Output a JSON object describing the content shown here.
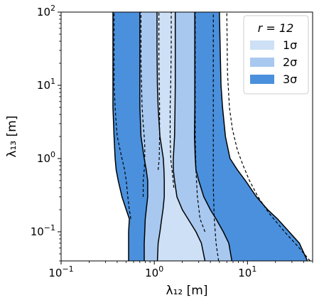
{
  "chart_data": {
    "type": "area",
    "xscale": "log",
    "yscale": "log",
    "xlim": [
      0.1,
      50
    ],
    "ylim": [
      0.04,
      100
    ],
    "xlabel": "λ₁₂ [m]",
    "ylabel": "λ₁₃ [m]",
    "x_ticks": [
      {
        "value": 0.1,
        "base": "10",
        "exp": "−1"
      },
      {
        "value": 1,
        "base": "10",
        "exp": "0"
      },
      {
        "value": 10,
        "base": "10",
        "exp": "1"
      }
    ],
    "y_ticks": [
      {
        "value": 0.1,
        "base": "10",
        "exp": "−1"
      },
      {
        "value": 1,
        "base": "10",
        "exp": "0"
      },
      {
        "value": 10,
        "base": "10",
        "exp": "1"
      },
      {
        "value": 100,
        "base": "10",
        "exp": "2"
      }
    ],
    "legend": {
      "title": "r = 12",
      "placement": "top-right",
      "entries": [
        {
          "label": "1σ",
          "color": "#cde0f5"
        },
        {
          "label": "2σ",
          "color": "#a8c8ef"
        },
        {
          "label": "3σ",
          "color": "#4a90dc"
        }
      ]
    },
    "colors": {
      "sigma1": "#cde0f5",
      "sigma2": "#a8c8ef",
      "sigma3": "#4a90dc",
      "contour": "#000000"
    },
    "contours": {
      "y": [
        0.04,
        0.07,
        0.1,
        0.15,
        0.2,
        0.3,
        0.5,
        0.7,
        1,
        2,
        5,
        10,
        30,
        100
      ],
      "sigma3_left": [
        0.53,
        0.53,
        0.53,
        0.54,
        0.5,
        0.45,
        0.41,
        0.39,
        0.38,
        0.37,
        0.36,
        0.36,
        0.36,
        0.36
      ],
      "sigma2_left": [
        0.78,
        0.78,
        0.79,
        0.8,
        0.82,
        0.85,
        0.85,
        0.82,
        0.78,
        0.72,
        0.7,
        0.7,
        0.7,
        0.7
      ],
      "sigma1_left": [
        1.08,
        1.1,
        1.15,
        1.2,
        1.24,
        1.28,
        1.28,
        1.27,
        1.25,
        1.15,
        1.1,
        1.08,
        1.07,
        1.07
      ],
      "sigma1_right": [
        3.5,
        3.2,
        2.8,
        2.3,
        2.0,
        1.75,
        1.65,
        1.6,
        1.6,
        1.65,
        1.67,
        1.68,
        1.68,
        1.68
      ],
      "sigma2_right": [
        6.8,
        6.3,
        5.5,
        4.6,
        4.0,
        3.4,
        3.0,
        2.8,
        2.75,
        2.7,
        2.72,
        2.72,
        2.72,
        2.72
      ],
      "sigma3_right": [
        44,
        36,
        28,
        21,
        16.5,
        12.5,
        9.5,
        7.8,
        6.5,
        5.8,
        5.4,
        5.2,
        5.1,
        5.0
      ],
      "dashed": [
        {
          "x": [
            0.56,
            0.54,
            0.52,
            0.5,
            0.48,
            0.45,
            0.42,
            0.4,
            0.39,
            0.38,
            0.37,
            0.37,
            0.37,
            0.37
          ],
          "y": [
            0.15,
            0.2,
            0.3,
            0.5,
            0.7,
            1,
            1.5,
            2,
            3,
            5,
            10,
            20,
            50,
            100
          ]
        },
        {
          "x": [
            0.76,
            0.76,
            0.78,
            0.79,
            0.79,
            0.78,
            0.76,
            0.74,
            0.73,
            0.72,
            0.72,
            0.72
          ],
          "y": [
            0.3,
            0.5,
            0.7,
            1,
            1.5,
            2,
            3,
            5,
            10,
            20,
            50,
            100
          ]
        },
        {
          "x": [
            1.1,
            1.13,
            1.14,
            1.14,
            1.13,
            1.12,
            1.12,
            1.12
          ],
          "y": [
            0.7,
            1,
            2,
            5,
            10,
            20,
            50,
            100
          ]
        },
        {
          "x": [
            1.62,
            1.55,
            1.5,
            1.48,
            1.48,
            1.5,
            1.52,
            1.52
          ],
          "y": [
            0.4,
            0.7,
            1,
            2,
            5,
            10,
            30,
            100
          ]
        },
        {
          "x": [
            3.5,
            3.1,
            2.9,
            2.8,
            2.75,
            2.75,
            2.75
          ],
          "y": [
            0.1,
            0.15,
            0.3,
            0.7,
            2,
            10,
            100
          ]
        },
        {
          "x": [
            4.9,
            4.6,
            4.4,
            4.3,
            4.3,
            4.3
          ],
          "y": [
            0.04,
            0.07,
            0.15,
            0.4,
            1,
            100
          ]
        },
        {
          "x": [
            47,
            36,
            25,
            17,
            13,
            10.5,
            9,
            7.8,
            6.9,
            6.4,
            6.1,
            6.0
          ],
          "y": [
            0.04,
            0.06,
            0.1,
            0.18,
            0.3,
            0.5,
            0.8,
            1.3,
            2.5,
            5,
            15,
            100
          ]
        }
      ]
    }
  }
}
